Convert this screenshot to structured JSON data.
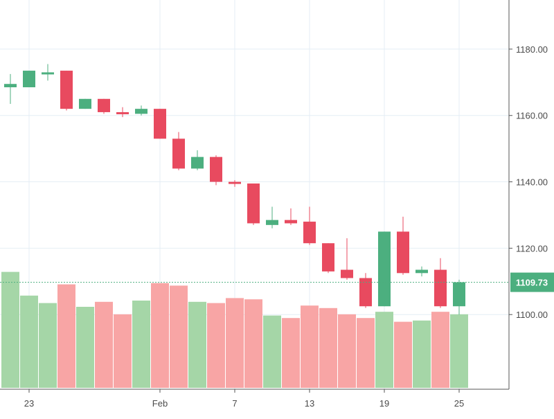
{
  "chart_data": {
    "type": "candlestick",
    "colors": {
      "up": "#4caf7f",
      "down": "#e84a5f",
      "volume_up": "#a5d6a7",
      "volume_down": "#f8a5a5",
      "grid": "#e4eef5",
      "axis": "#555555",
      "current_price_line": "#4caf7f"
    },
    "grid": true,
    "price_axis": {
      "ticks": [
        1100,
        1120,
        1140,
        1160,
        1180
      ],
      "tick_labels": [
        "1100.00",
        "1120.00",
        "1140.00",
        "1160.00",
        "1180.00"
      ],
      "range": [
        1077.5,
        1194.8
      ]
    },
    "volume_axis": {
      "range": [
        0,
        100
      ]
    },
    "x_axis": {
      "ticks": [
        {
          "index": 1,
          "label": "23"
        },
        {
          "index": 8,
          "label": "Feb"
        },
        {
          "index": 12,
          "label": "7"
        },
        {
          "index": 16,
          "label": "13"
        },
        {
          "index": 20,
          "label": "19"
        },
        {
          "index": 24,
          "label": "25"
        }
      ]
    },
    "current_price": {
      "value": 1109.73,
      "label": "1109.73"
    },
    "candles": [
      {
        "open": 1168.5,
        "high": 1172.5,
        "low": 1163.5,
        "close": 1169.5,
        "volume": 93
      },
      {
        "open": 1168.5,
        "high": 1173.5,
        "low": 1168.5,
        "close": 1173.5,
        "volume": 74
      },
      {
        "open": 1173.0,
        "high": 1175.5,
        "low": 1170.5,
        "close": 1173.0,
        "volume": 68
      },
      {
        "open": 1173.5,
        "high": 1173.5,
        "low": 1161.5,
        "close": 1162.0,
        "volume": 83
      },
      {
        "open": 1162.0,
        "high": 1165.0,
        "low": 1162.0,
        "close": 1165.0,
        "volume": 65
      },
      {
        "open": 1165.0,
        "high": 1165.0,
        "low": 1160.5,
        "close": 1161.0,
        "volume": 69
      },
      {
        "open": 1161.0,
        "high": 1162.5,
        "low": 1159.5,
        "close": 1160.5,
        "volume": 59
      },
      {
        "open": 1160.5,
        "high": 1163.0,
        "low": 1160.0,
        "close": 1162.0,
        "volume": 70
      },
      {
        "open": 1162.0,
        "high": 1162.0,
        "low": 1153.0,
        "close": 1153.0,
        "volume": 84
      },
      {
        "open": 1153.0,
        "high": 1155.0,
        "low": 1143.5,
        "close": 1144.0,
        "volume": 82
      },
      {
        "open": 1144.0,
        "high": 1149.5,
        "low": 1143.5,
        "close": 1147.5,
        "volume": 69
      },
      {
        "open": 1147.5,
        "high": 1148.0,
        "low": 1139.0,
        "close": 1140.0,
        "volume": 68
      },
      {
        "open": 1140.0,
        "high": 1140.5,
        "low": 1138.5,
        "close": 1139.5,
        "volume": 72
      },
      {
        "open": 1139.5,
        "high": 1139.5,
        "low": 1127.0,
        "close": 1127.5,
        "volume": 71
      },
      {
        "open": 1127.0,
        "high": 1132.5,
        "low": 1126.0,
        "close": 1128.5,
        "volume": 58
      },
      {
        "open": 1128.5,
        "high": 1132.0,
        "low": 1127.0,
        "close": 1127.5,
        "volume": 56
      },
      {
        "open": 1128.0,
        "high": 1132.5,
        "low": 1121.0,
        "close": 1121.5,
        "volume": 66
      },
      {
        "open": 1121.5,
        "high": 1121.5,
        "low": 1112.5,
        "close": 1113.0,
        "volume": 64
      },
      {
        "open": 1113.5,
        "high": 1123.0,
        "low": 1110.5,
        "close": 1111.0,
        "volume": 59
      },
      {
        "open": 1111.0,
        "high": 1112.5,
        "low": 1102.0,
        "close": 1102.5,
        "volume": 56
      },
      {
        "open": 1102.5,
        "high": 1125.0,
        "low": 1102.5,
        "close": 1125.0,
        "volume": 61
      },
      {
        "open": 1125.0,
        "high": 1129.5,
        "low": 1112.0,
        "close": 1112.5,
        "volume": 53
      },
      {
        "open": 1112.5,
        "high": 1114.5,
        "low": 1111.5,
        "close": 1113.5,
        "volume": 54
      },
      {
        "open": 1113.5,
        "high": 1117.0,
        "low": 1102.0,
        "close": 1102.5,
        "volume": 61
      },
      {
        "open": 1102.5,
        "high": 1110.5,
        "low": 1100.0,
        "close": 1109.73,
        "volume": 59
      }
    ]
  }
}
